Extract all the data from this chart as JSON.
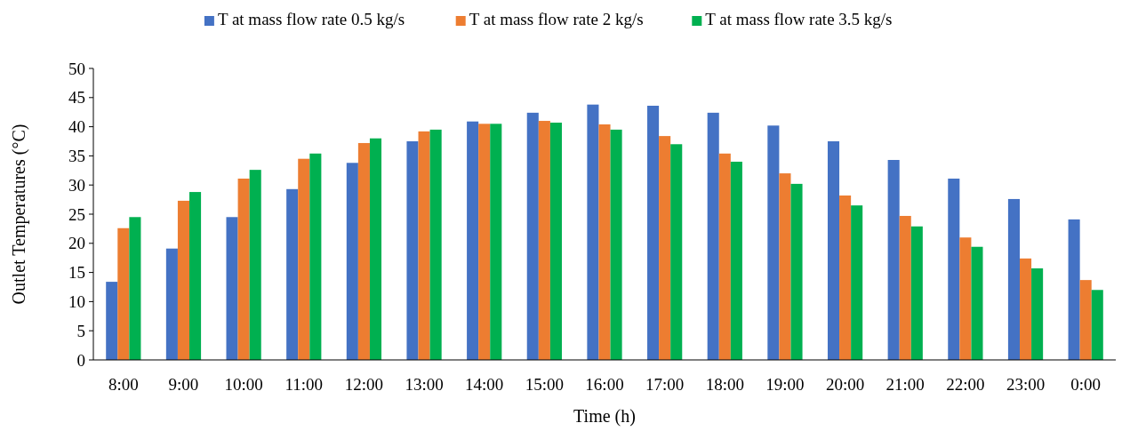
{
  "chart_data": {
    "type": "bar",
    "xlabel": "Time (h)",
    "ylabel": "Outlet Temperatures (°C)",
    "categories": [
      "8:00",
      "9:00",
      "10:00",
      "11:00",
      "12:00",
      "13:00",
      "14:00",
      "15:00",
      "16:00",
      "17:00",
      "18:00",
      "19:00",
      "20:00",
      "21:00",
      "22:00",
      "23:00",
      "0:00"
    ],
    "series": [
      {
        "name": "T at mass flow rate 0.5 kg/s",
        "color": "#4472c4",
        "values": [
          13.4,
          19.1,
          24.5,
          29.3,
          33.8,
          37.5,
          40.9,
          42.4,
          43.8,
          43.6,
          42.4,
          40.2,
          37.5,
          34.3,
          31.1,
          27.6,
          24.1
        ]
      },
      {
        "name": "T at mass flow rate 2 kg/s",
        "color": "#ed7d31",
        "values": [
          22.6,
          27.3,
          31.1,
          34.5,
          37.2,
          39.2,
          40.5,
          41.0,
          40.4,
          38.4,
          35.4,
          32.0,
          28.2,
          24.7,
          21.0,
          17.4,
          13.7
        ]
      },
      {
        "name": "T at mass flow rate 3.5 kg/s",
        "color": "#00b050",
        "values": [
          24.5,
          28.8,
          32.6,
          35.4,
          38.0,
          39.5,
          40.5,
          40.7,
          39.5,
          37.0,
          34.0,
          30.2,
          26.5,
          22.9,
          19.4,
          15.7,
          12.0
        ]
      }
    ],
    "ylim": [
      0,
      50
    ],
    "yticks": [
      0,
      5,
      10,
      15,
      20,
      25,
      30,
      35,
      40,
      45,
      50
    ],
    "grid": false,
    "legend": "top"
  }
}
